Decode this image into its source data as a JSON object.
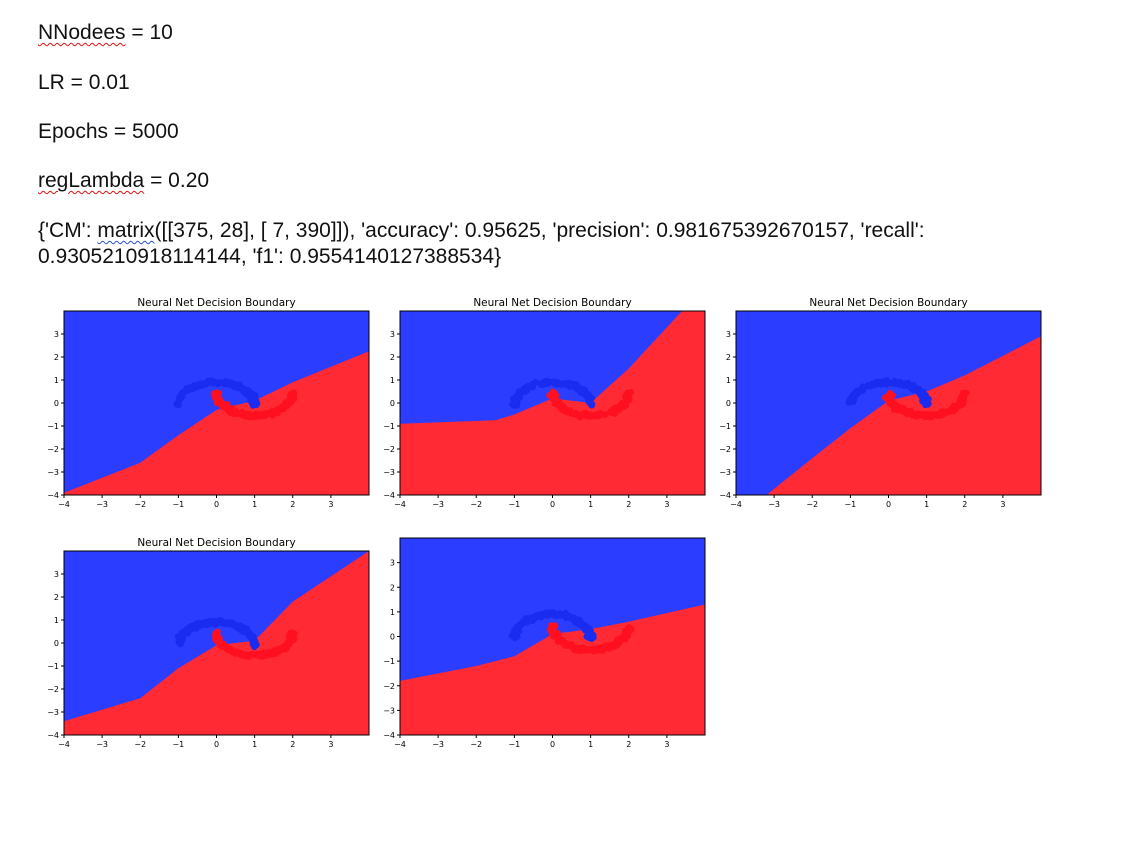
{
  "document": {
    "line_nnodes": {
      "key": "NNodees",
      "rest": " = 10"
    },
    "line_lr": "LR = 0.01",
    "line_epochs": "Epochs = 5000",
    "line_reg": {
      "key": "regLambda",
      "rest": " = 0.20"
    },
    "metrics_line1": {
      "pre": "{'CM': ",
      "word": "matrix",
      "post": "([[375,  28], [ 7, 390]]), 'accuracy': 0.95625, 'precision': 0.981675392670157, 'recall':"
    },
    "metrics_line2": "0.9305210918114144, 'f1': 0.9554140127388534}"
  },
  "colors": {
    "blue_region": "#2b3dff",
    "red_region": "#ff2a33",
    "blue_points": "#1a2cf0",
    "red_points": "#ff1020"
  },
  "chart_data": [
    {
      "type": "scatter",
      "title": "Neural Net Decision Boundary",
      "xlim": [
        -4,
        4
      ],
      "ylim": [
        -4,
        4
      ],
      "xticks": [
        "−4",
        "−3",
        "−2",
        "−1",
        "0",
        "1",
        "2",
        "3"
      ],
      "yticks": [
        "3",
        "2",
        "1",
        "0",
        "−1",
        "−2",
        "−3",
        "−4"
      ],
      "boundary_x": [
        -4,
        -2,
        -1,
        0,
        1,
        2,
        4
      ],
      "boundary_y": [
        -3.9,
        -2.6,
        -1.4,
        -0.3,
        0.1,
        0.9,
        2.25
      ]
    },
    {
      "type": "scatter",
      "title": "Neural Net Decision Boundary",
      "xlim": [
        -4,
        4
      ],
      "ylim": [
        -4,
        4
      ],
      "xticks": [
        "−4",
        "−3",
        "−2",
        "−1",
        "0",
        "1",
        "2",
        "3"
      ],
      "yticks": [
        "3",
        "2",
        "1",
        "0",
        "−1",
        "−2",
        "−3",
        "−4"
      ],
      "boundary_x": [
        -4,
        -1.5,
        -1,
        0,
        1,
        2,
        3.4,
        4
      ],
      "boundary_y": [
        -0.9,
        -0.75,
        -0.5,
        0.2,
        0.0,
        1.5,
        4,
        4
      ]
    },
    {
      "type": "scatter",
      "title": "Neural Net Decision Boundary",
      "xlim": [
        -4,
        4
      ],
      "ylim": [
        -4,
        4
      ],
      "xticks": [
        "−4",
        "−3",
        "−2",
        "−1",
        "0",
        "1",
        "2",
        "3"
      ],
      "yticks": [
        "3",
        "2",
        "1",
        "0",
        "−1",
        "−2",
        "−3",
        "−4"
      ],
      "boundary_x": [
        -3.2,
        -2,
        -1,
        0,
        1,
        2,
        4
      ],
      "boundary_y": [
        -4,
        -2.4,
        -1.1,
        0.1,
        0.5,
        1.2,
        2.9
      ]
    },
    {
      "type": "scatter",
      "title": "Neural Net Decision Boundary",
      "xlim": [
        -4,
        4
      ],
      "ylim": [
        -4,
        4
      ],
      "xticks": [
        "−4",
        "−3",
        "−2",
        "−1",
        "0",
        "1",
        "2",
        "3"
      ],
      "yticks": [
        "3",
        "2",
        "1",
        "0",
        "−1",
        "−2",
        "−3",
        "−4"
      ],
      "boundary_x": [
        -4,
        -2,
        -1,
        0,
        1,
        2,
        4
      ],
      "boundary_y": [
        -3.4,
        -2.4,
        -1.1,
        -0.1,
        0.1,
        1.8,
        4
      ]
    },
    {
      "type": "scatter",
      "title": "",
      "xlim": [
        -4,
        4
      ],
      "ylim": [
        -4,
        4
      ],
      "xticks": [
        "−4",
        "−3",
        "−2",
        "−1",
        "0",
        "1",
        "2",
        "3"
      ],
      "yticks": [
        "3",
        "2",
        "1",
        "0",
        "−1",
        "−2",
        "−3",
        "−4"
      ],
      "boundary_x": [
        -4,
        -2,
        -1,
        0,
        1,
        2,
        4
      ],
      "boundary_y": [
        -1.8,
        -1.2,
        -0.8,
        0.1,
        0.3,
        0.6,
        1.3
      ]
    }
  ]
}
